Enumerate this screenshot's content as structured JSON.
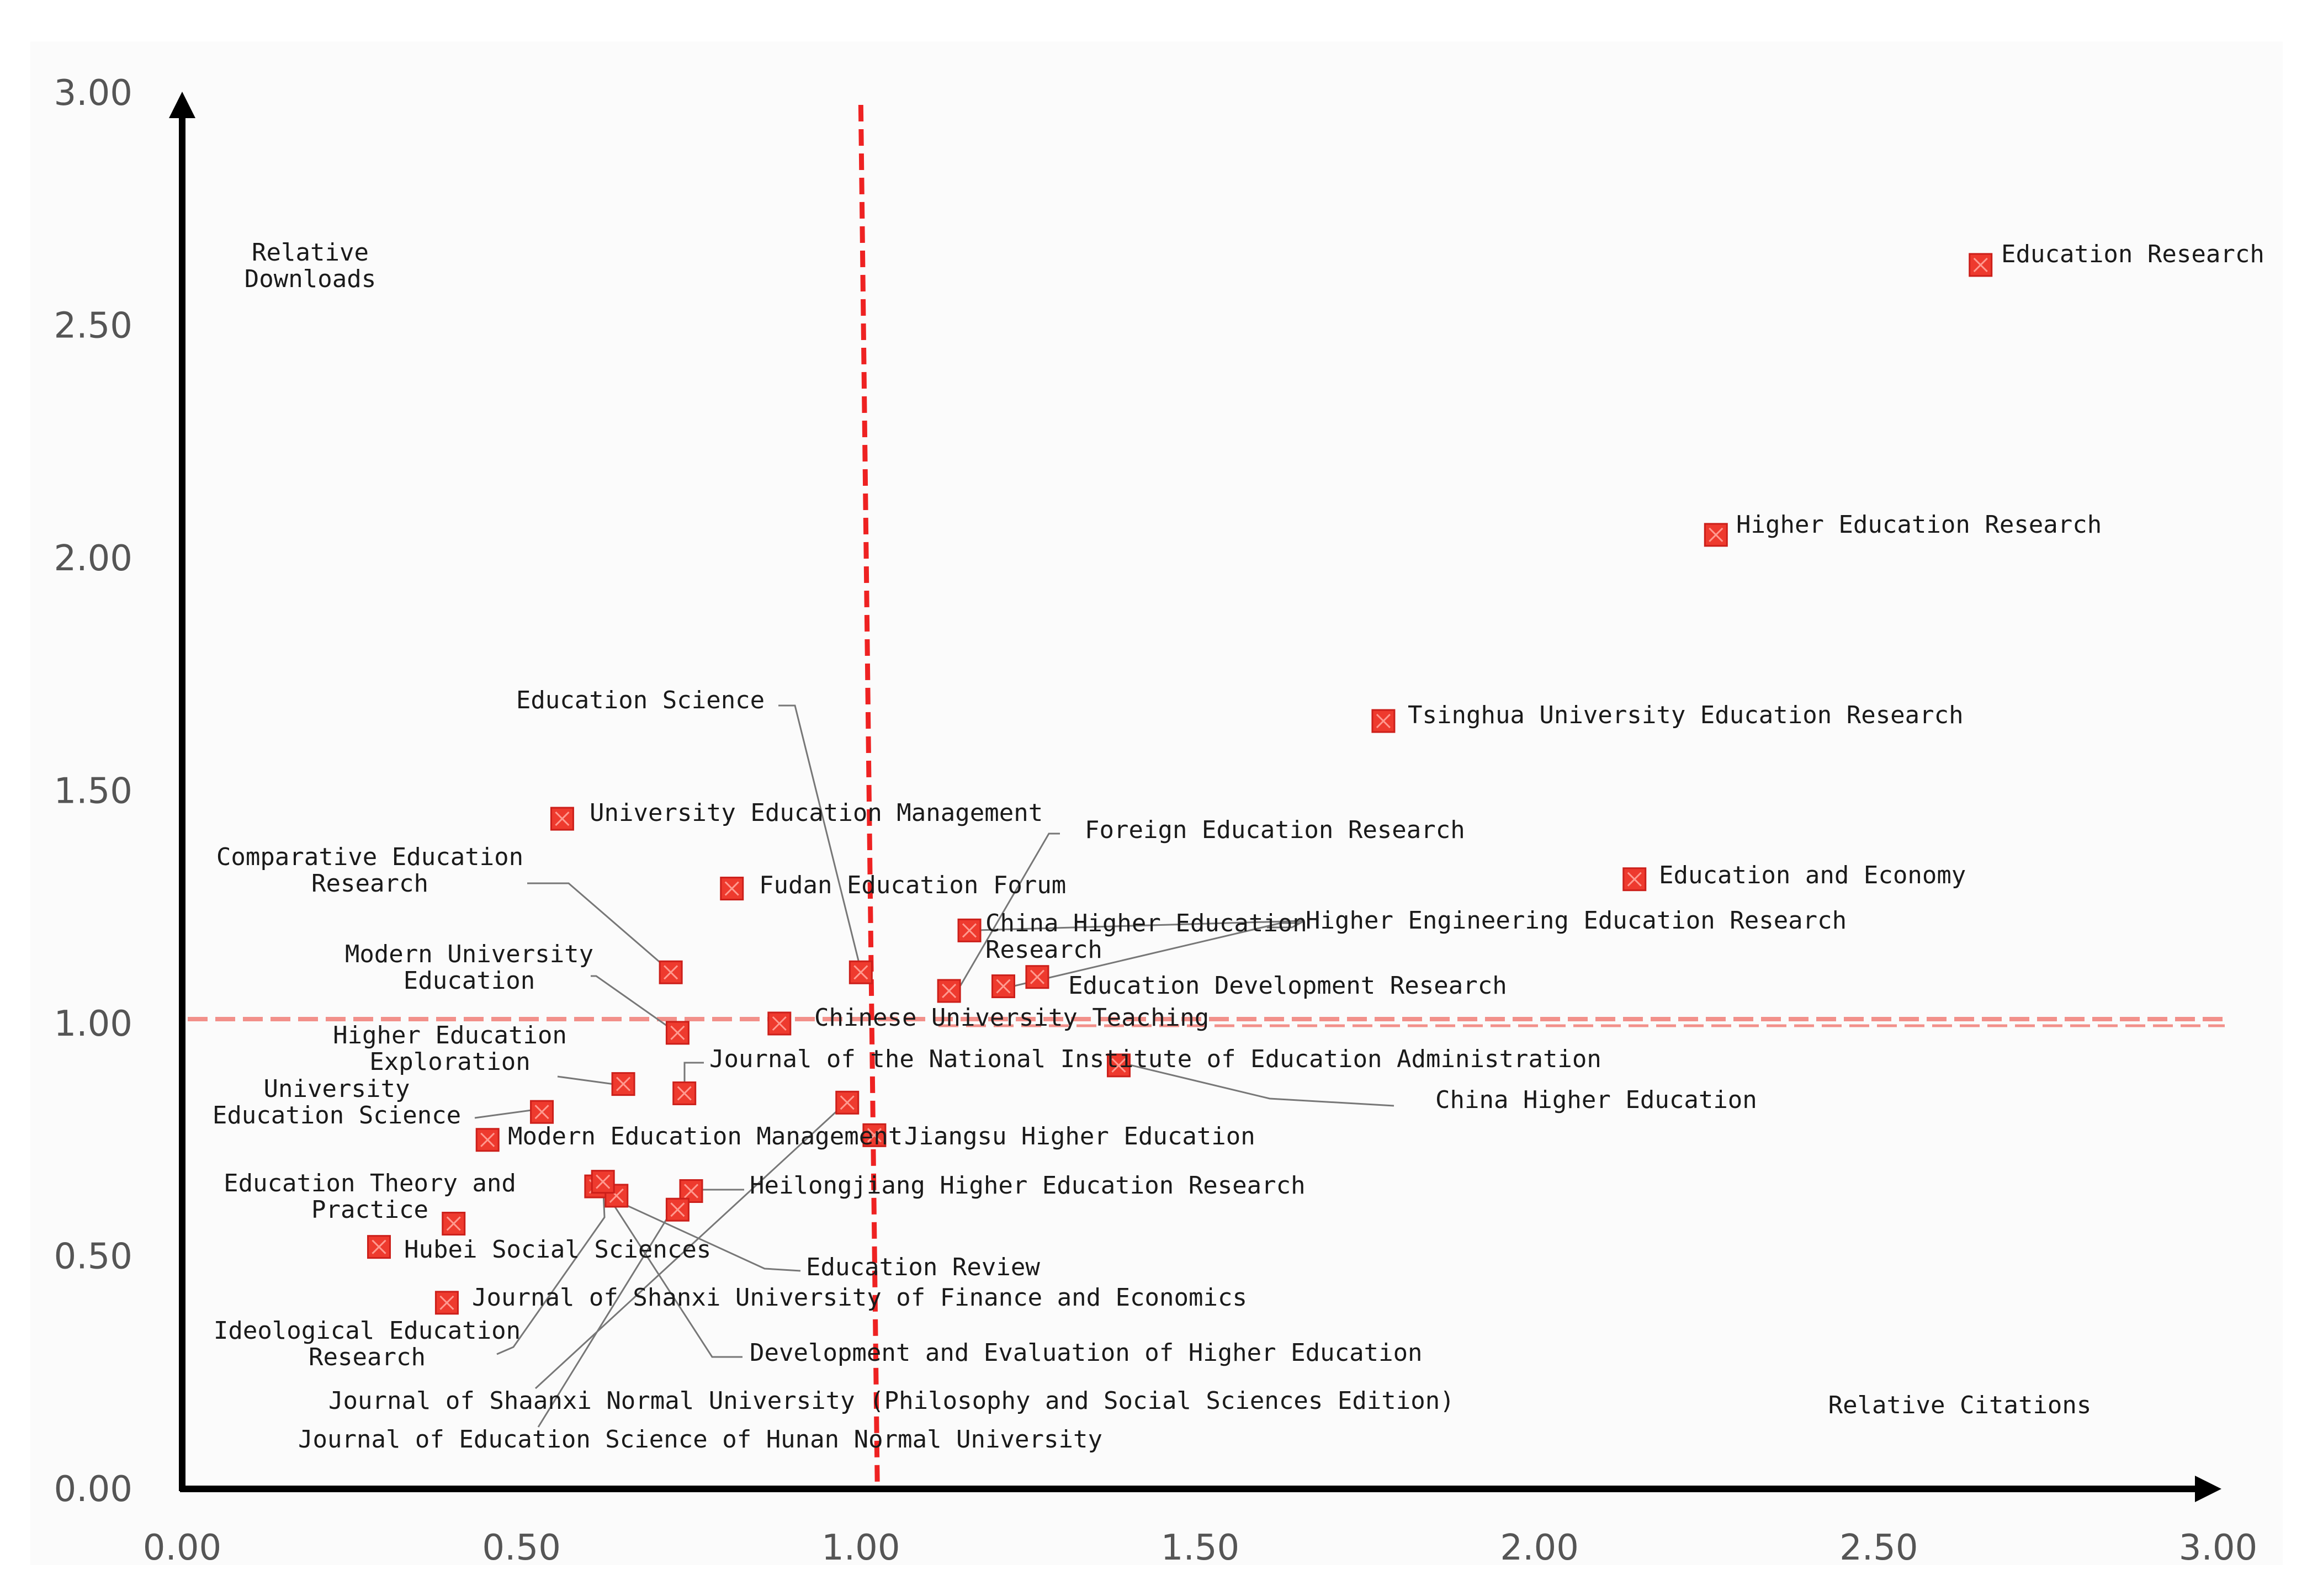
{
  "chart_data": {
    "type": "scatter",
    "title": "",
    "xlabel": "Relative Citations",
    "ylabel": "Relative\nDownloads",
    "xlim": [
      0,
      3
    ],
    "ylim": [
      0,
      3
    ],
    "x_ticks": [
      "0.00",
      "0.50",
      "1.00",
      "1.50",
      "2.00",
      "2.50",
      "3.00"
    ],
    "y_ticks": [
      "0.00",
      "0.50",
      "1.00",
      "1.50",
      "2.00",
      "2.50",
      "3.00"
    ],
    "reference_lines": {
      "x": 1.0,
      "y": 1.0
    },
    "colors": {
      "marker": "#ee3a2e",
      "reference": "#ee2222",
      "axis": "#000000"
    },
    "points": [
      {
        "name": "Education Research",
        "x": 2.65,
        "y": 2.63
      },
      {
        "name": "Higher Education Research",
        "x": 2.26,
        "y": 2.05
      },
      {
        "name": "Tsinghua University Education Research",
        "x": 1.77,
        "y": 1.65
      },
      {
        "name": "Education and Economy",
        "x": 2.14,
        "y": 1.31
      },
      {
        "name": "University Education Management",
        "x": 0.56,
        "y": 1.44
      },
      {
        "name": "Fudan Education Forum",
        "x": 0.81,
        "y": 1.29
      },
      {
        "name": "Education Science",
        "x": 1.0,
        "y": 1.11
      },
      {
        "name": "Comparative Education\nResearch",
        "x": 0.72,
        "y": 1.11
      },
      {
        "name": "China Higher Education\nResearch",
        "x": 1.16,
        "y": 1.2
      },
      {
        "name": "Foreign Education Research",
        "x": 1.13,
        "y": 1.07
      },
      {
        "name": "Higher Engineering Education Research",
        "x": 1.21,
        "y": 1.08
      },
      {
        "name": "Education Development Research",
        "x": 1.26,
        "y": 1.1
      },
      {
        "name": "Modern University\nEducation",
        "x": 0.73,
        "y": 0.98
      },
      {
        "name": "Chinese University Teaching",
        "x": 0.88,
        "y": 1.0
      },
      {
        "name": "Higher Education\nExploration",
        "x": 0.65,
        "y": 0.87
      },
      {
        "name": "Journal of the National Institute of Education Administration",
        "x": 0.74,
        "y": 0.85
      },
      {
        "name": "China Higher Education",
        "x": 1.38,
        "y": 0.91
      },
      {
        "name": "University\nEducation Science",
        "x": 0.53,
        "y": 0.81
      },
      {
        "name": "Modern Education Management",
        "x": 0.45,
        "y": 0.75
      },
      {
        "name": "Jiangsu Higher Education",
        "x": 1.02,
        "y": 0.76
      },
      {
        "name": "Heilongjiang Higher Education Research",
        "x": 0.75,
        "y": 0.64
      },
      {
        "name": "Education Theory and\nPractice",
        "x": 0.4,
        "y": 0.57
      },
      {
        "name": "Hubei Social Sciences",
        "x": 0.29,
        "y": 0.52
      },
      {
        "name": "Journal of Shanxi University of Finance and Economics",
        "x": 0.39,
        "y": 0.4
      },
      {
        "name": "Education Review",
        "x": 0.61,
        "y": 0.65
      },
      {
        "name": "Development and Evaluation of Higher Education",
        "x": 0.64,
        "y": 0.63
      },
      {
        "name": "Ideological Education\nResearch",
        "x": 0.62,
        "y": 0.66
      },
      {
        "name": "Journal of Shaanxi Normal University (Philosophy and Social Sciences Edition)",
        "x": 0.98,
        "y": 0.83
      },
      {
        "name": "Journal of Education Science of Hunan Normal University",
        "x": 0.73,
        "y": 0.6
      }
    ]
  }
}
